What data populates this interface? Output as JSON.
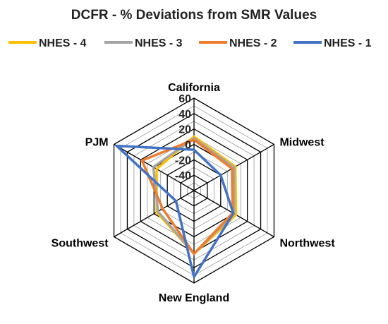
{
  "chart_data": {
    "type": "radar",
    "title": "DCFR - % Deviations from SMR Values",
    "categories": [
      "California",
      "Midwest",
      "Northwest",
      "New England",
      "Southwest",
      "PJM"
    ],
    "r_ticks": [
      60,
      40,
      20,
      0,
      -20,
      -40
    ],
    "rlim": [
      -60,
      60
    ],
    "grid": true,
    "legend_position": "top",
    "series": [
      {
        "name": "NHES - 4",
        "color": "#FFC000",
        "values": [
          10,
          2,
          3,
          22,
          -4,
          -4
        ]
      },
      {
        "name": "NHES - 3",
        "color": "#A5A5A5",
        "values": [
          8,
          0,
          0,
          22,
          -6,
          1
        ]
      },
      {
        "name": "NHES - 2",
        "color": "#ED7D31",
        "values": [
          6,
          -3,
          -2,
          22,
          -13,
          18
        ]
      },
      {
        "name": "NHES - 1",
        "color": "#4472C4",
        "values": [
          -7,
          -20,
          -1,
          52,
          -33,
          56
        ]
      }
    ]
  }
}
